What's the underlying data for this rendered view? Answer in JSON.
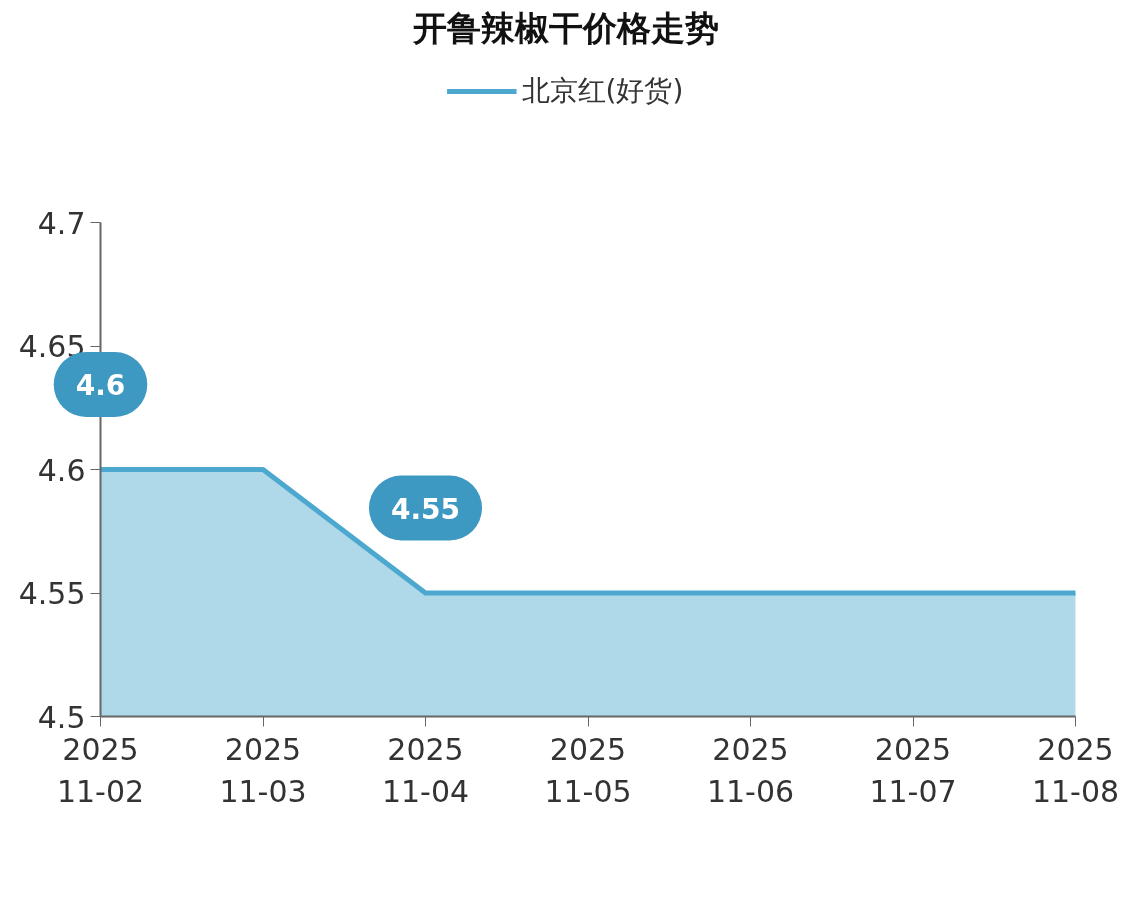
{
  "chart_data": {
    "type": "area",
    "title": "开鲁辣椒干价格走势",
    "x": [
      "2025-11-02",
      "2025-11-03",
      "2025-11-04",
      "2025-11-05",
      "2025-11-06",
      "2025-11-07",
      "2025-11-08"
    ],
    "series": [
      {
        "name": "北京红(好货)",
        "color": "#4da8cf",
        "values": [
          4.6,
          4.6,
          4.55,
          4.55,
          4.55,
          4.55,
          4.55
        ]
      }
    ],
    "xlim": [
      "2025-11-02",
      "2025-11-08"
    ],
    "xticks": [
      {
        "value": "2025-11-02",
        "label": "2025\n11-02"
      },
      {
        "value": "2025-11-03",
        "label": "2025\n11-03"
      },
      {
        "value": "2025-11-04",
        "label": "2025\n11-04"
      },
      {
        "value": "2025-11-05",
        "label": "2025\n11-05"
      },
      {
        "value": "2025-11-06",
        "label": "2025\n11-06"
      },
      {
        "value": "2025-11-07",
        "label": "2025\n11-07"
      },
      {
        "value": "2025-11-08",
        "label": "2025\n11-08"
      }
    ],
    "ylim": [
      4.5,
      4.7
    ],
    "yticks": [
      4.5,
      4.55,
      4.6,
      4.65,
      4.7
    ],
    "annotations": [
      {
        "text": "4.6",
        "x": "2025-11-02",
        "y": 4.6
      },
      {
        "text": "4.55",
        "x": "2025-11-04",
        "y": 4.55
      }
    ],
    "legend": "top",
    "grid": false,
    "marker": "none",
    "line_style": "solid"
  }
}
